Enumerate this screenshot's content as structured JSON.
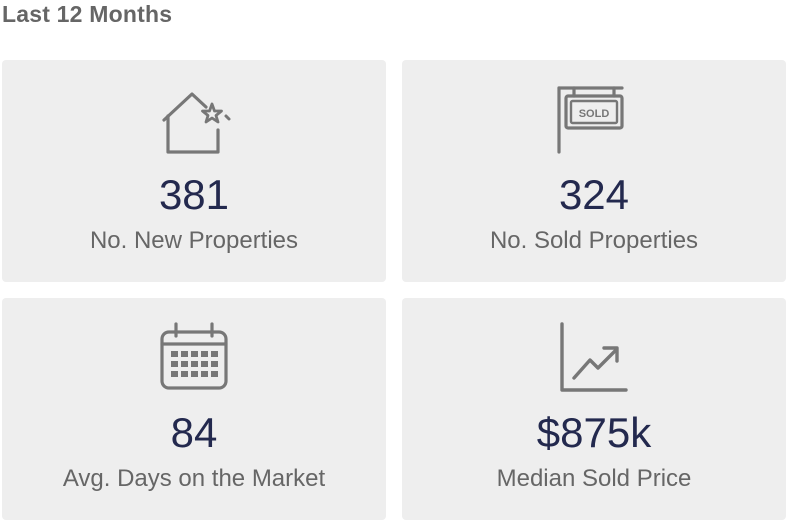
{
  "section": {
    "title": "Last 12 Months"
  },
  "colors": {
    "card_background": "#eeeeee",
    "value_text": "#23294e",
    "label_text": "#666666",
    "icon_stroke": "#777777"
  },
  "stats": [
    {
      "icon": "house-star-icon",
      "value": "381",
      "label": "No. New Properties"
    },
    {
      "icon": "sold-sign-icon",
      "value": "324",
      "label": "No. Sold Properties",
      "sign_text": "SOLD"
    },
    {
      "icon": "calendar-icon",
      "value": "84",
      "label": "Avg. Days on the Market"
    },
    {
      "icon": "trend-chart-icon",
      "value": "$875k",
      "label": "Median Sold Price"
    }
  ]
}
